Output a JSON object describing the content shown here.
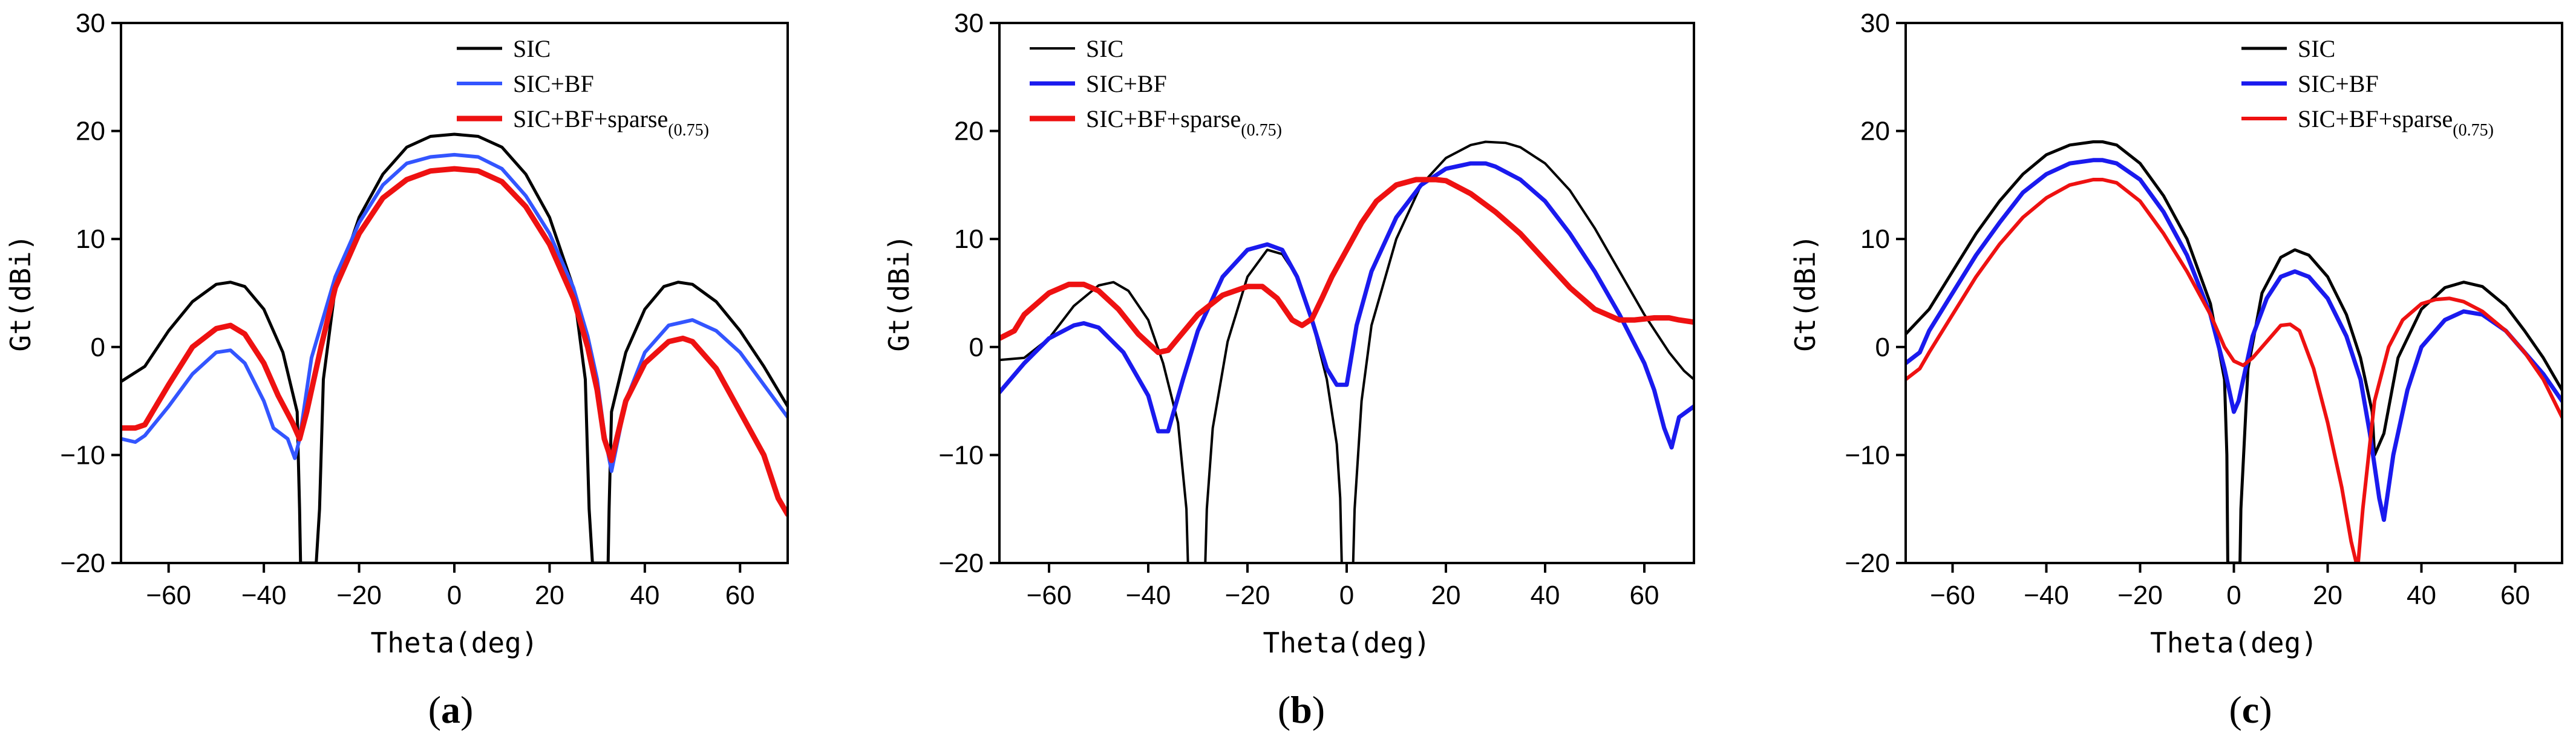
{
  "chart_data": [
    {
      "type": "line",
      "panel_label": "a",
      "xlabel": "Theta(deg)",
      "ylabel": "Gt(dBi)",
      "xlim": [
        -70,
        70
      ],
      "ylim": [
        -20,
        30
      ],
      "xticks": [
        -60,
        -40,
        -20,
        0,
        20,
        40,
        60
      ],
      "yticks": [
        -20,
        -10,
        0,
        10,
        20,
        30
      ],
      "legend_position": "top-right",
      "series": [
        {
          "name": "SIC",
          "color": "#000000",
          "width": 5,
          "x": [
            -70,
            -65,
            -60,
            -55,
            -50,
            -47,
            -44,
            -40,
            -36,
            -33,
            -32.5,
            -32.3,
            -29,
            -28.3,
            -27.5,
            -25,
            -20,
            -15,
            -10,
            -5,
            0,
            5,
            10,
            15,
            20,
            25,
            27.5,
            28.3,
            29,
            32.3,
            32.5,
            33,
            36,
            40,
            44,
            47,
            50,
            55,
            60,
            65,
            70
          ],
          "y": [
            -3.2,
            -1.8,
            1.5,
            4.2,
            5.8,
            6.0,
            5.6,
            3.5,
            -0.5,
            -6,
            -15,
            -20,
            -20,
            -15,
            -3,
            5.5,
            12,
            16,
            18.5,
            19.5,
            19.7,
            19.5,
            18.5,
            16,
            12,
            5.5,
            -3,
            -15,
            -20,
            -20,
            -15,
            -6,
            -0.5,
            3.5,
            5.6,
            6.0,
            5.8,
            4.2,
            1.5,
            -1.8,
            -5.5
          ]
        },
        {
          "name": "SIC+BF",
          "color": "#3355ff",
          "width": 6,
          "x": [
            -70,
            -67,
            -65,
            -60,
            -55,
            -50,
            -47,
            -44,
            -40,
            -38,
            -35,
            -33.5,
            -32.5,
            -30,
            -25,
            -20,
            -15,
            -10,
            -5,
            0,
            5,
            10,
            15,
            20,
            25,
            28,
            30,
            31.5,
            33,
            36,
            40,
            45,
            50,
            55,
            60,
            65,
            70
          ],
          "y": [
            -8.5,
            -8.8,
            -8.2,
            -5.5,
            -2.5,
            -0.5,
            -0.3,
            -1.5,
            -5,
            -7.5,
            -8.5,
            -10.3,
            -8.5,
            -1,
            6.5,
            11.5,
            15,
            17,
            17.6,
            17.8,
            17.6,
            16.5,
            14,
            10.5,
            5.5,
            1,
            -3,
            -8,
            -11.5,
            -5,
            -0.5,
            2,
            2.5,
            1.5,
            -0.5,
            -3.5,
            -6.5
          ]
        },
        {
          "name": "SIC+BF+sparse(0.75)",
          "color": "#ee1111",
          "width": 9,
          "x": [
            -70,
            -67,
            -65,
            -60,
            -55,
            -50,
            -47,
            -44,
            -40,
            -37,
            -34,
            -32.5,
            -31,
            -28,
            -25,
            -20,
            -15,
            -10,
            -5,
            0,
            5,
            10,
            15,
            20,
            25,
            28,
            30,
            31.5,
            33,
            36,
            40,
            45,
            48,
            50,
            55,
            60,
            65,
            68,
            70
          ],
          "y": [
            -7.5,
            -7.5,
            -7.2,
            -3.5,
            0,
            1.7,
            2.0,
            1.2,
            -1.5,
            -4.5,
            -7,
            -8.5,
            -6,
            0,
            5.5,
            10.5,
            13.8,
            15.5,
            16.3,
            16.5,
            16.3,
            15.3,
            13,
            9.5,
            4.5,
            0,
            -4,
            -8.5,
            -10.5,
            -5,
            -1.5,
            0.5,
            0.8,
            0.5,
            -2,
            -6,
            -10,
            -14,
            -15.5
          ]
        }
      ],
      "legend": {
        "entries": [
          "SIC",
          "SIC+BF",
          "SIC+BF+sparse"
        ],
        "subscript": "(0.75)"
      }
    },
    {
      "type": "line",
      "panel_label": "b",
      "xlabel": "Theta(deg)",
      "ylabel": "Gt(dBi)",
      "xlim": [
        -70,
        70
      ],
      "ylim": [
        -20,
        30
      ],
      "xticks": [
        -60,
        -40,
        -20,
        0,
        20,
        40,
        60
      ],
      "yticks": [
        -20,
        -10,
        0,
        10,
        20,
        30
      ],
      "legend_position": "top-left",
      "series": [
        {
          "name": "SIC",
          "color": "#000000",
          "width": 4,
          "x": [
            -70,
            -65,
            -60,
            -55,
            -50,
            -47,
            -44,
            -40,
            -37,
            -34,
            -32.3,
            -32,
            -28.5,
            -28.2,
            -27,
            -24,
            -20,
            -16,
            -13,
            -10,
            -7,
            -4,
            -2,
            -1.3,
            -1,
            1.3,
            1.6,
            3,
            5,
            10,
            15,
            20,
            25,
            28,
            32,
            35,
            40,
            45,
            50,
            55,
            60,
            65,
            68,
            70
          ],
          "y": [
            -1.2,
            -1,
            0.8,
            3.8,
            5.7,
            6.0,
            5.2,
            2.5,
            -1.5,
            -7,
            -15,
            -20,
            -20,
            -15,
            -7.5,
            0.5,
            6.5,
            9.0,
            8.6,
            6.5,
            2.5,
            -3,
            -9,
            -14,
            -20,
            -20,
            -15,
            -5,
            2,
            10,
            15,
            17.5,
            18.7,
            19.0,
            18.9,
            18.5,
            17,
            14.5,
            11,
            7,
            3,
            -0.5,
            -2.2,
            -3
          ]
        },
        {
          "name": "SIC+BF",
          "color": "#1a1aee",
          "width": 7,
          "x": [
            -70,
            -65,
            -60,
            -55,
            -53,
            -50,
            -45,
            -40,
            -38,
            -36,
            -33,
            -30,
            -25,
            -20,
            -16,
            -13,
            -10,
            -7,
            -4,
            -2,
            0,
            2,
            5,
            10,
            15,
            20,
            25,
            28,
            30,
            35,
            40,
            45,
            50,
            55,
            60,
            62,
            64,
            65.5,
            67,
            70
          ],
          "y": [
            -4.2,
            -1.5,
            0.8,
            2.0,
            2.2,
            1.8,
            -0.5,
            -4.5,
            -7.8,
            -7.8,
            -3,
            1.5,
            6.5,
            9.0,
            9.5,
            9.0,
            6.5,
            2.5,
            -2,
            -3.5,
            -3.5,
            2,
            7,
            12,
            15,
            16.5,
            17.0,
            17.0,
            16.7,
            15.5,
            13.5,
            10.5,
            7,
            3,
            -1.5,
            -4,
            -7.5,
            -9.3,
            -6.5,
            -5.5
          ]
        },
        {
          "name": "SIC+BF+sparse(0.75)",
          "color": "#ee1111",
          "width": 9,
          "x": [
            -70,
            -67,
            -65,
            -60,
            -56,
            -53,
            -50,
            -46,
            -42,
            -38,
            -36,
            -34,
            -30,
            -25,
            -20,
            -17,
            -14,
            -11,
            -9,
            -7,
            -5,
            -3,
            0,
            3,
            6,
            10,
            14,
            18,
            20,
            25,
            30,
            35,
            40,
            45,
            50,
            55,
            58,
            60,
            62,
            65,
            67,
            70
          ],
          "y": [
            0.8,
            1.5,
            3,
            5,
            5.8,
            5.8,
            5.2,
            3.5,
            1.2,
            -0.5,
            -0.3,
            0.8,
            3,
            4.8,
            5.6,
            5.6,
            4.5,
            2.5,
            2.0,
            2.6,
            4.5,
            6.5,
            9,
            11.5,
            13.5,
            15,
            15.5,
            15.5,
            15.4,
            14.2,
            12.5,
            10.5,
            8,
            5.5,
            3.5,
            2.5,
            2.5,
            2.6,
            2.7,
            2.7,
            2.5,
            2.3
          ]
        }
      ],
      "legend": {
        "entries": [
          "SIC",
          "SIC+BF",
          "SIC+BF+sparse"
        ],
        "subscript": "(0.75)"
      }
    },
    {
      "type": "line",
      "panel_label": "c",
      "xlabel": "Theta(deg)",
      "ylabel": "Gt(dBi)",
      "xlim": [
        -70,
        70
      ],
      "ylim": [
        -20,
        30
      ],
      "xticks": [
        -60,
        -40,
        -20,
        0,
        20,
        40,
        60
      ],
      "yticks": [
        -20,
        -10,
        0,
        10,
        20,
        30
      ],
      "legend_position": "top-right",
      "series": [
        {
          "name": "SIC",
          "color": "#000000",
          "width": 5,
          "x": [
            -70,
            -65,
            -60,
            -55,
            -50,
            -45,
            -40,
            -35,
            -30,
            -28,
            -25,
            -20,
            -15,
            -10,
            -5,
            -2,
            -1.5,
            -1.3,
            1.3,
            1.5,
            3,
            6,
            10,
            13,
            16,
            20,
            24,
            27,
            29.5,
            30,
            32,
            35,
            40,
            45,
            49,
            53,
            58,
            62,
            66,
            70
          ],
          "y": [
            1.2,
            3.5,
            7,
            10.5,
            13.5,
            16,
            17.8,
            18.7,
            19.0,
            19.0,
            18.7,
            17,
            14,
            10,
            4,
            -3,
            -10,
            -20,
            -20,
            -15,
            -2,
            5,
            8.3,
            9.0,
            8.5,
            6.5,
            3,
            -1,
            -6,
            -10,
            -8,
            -1,
            3.5,
            5.5,
            6.0,
            5.6,
            3.8,
            1.5,
            -1,
            -4
          ]
        },
        {
          "name": "SIC+BF",
          "color": "#1a1aee",
          "width": 7,
          "x": [
            -70,
            -67,
            -65,
            -60,
            -55,
            -50,
            -45,
            -40,
            -35,
            -30,
            -28,
            -25,
            -20,
            -15,
            -10,
            -5,
            -2,
            0,
            1,
            2,
            4,
            7,
            10,
            13,
            16,
            20,
            24,
            27,
            29,
            31,
            32,
            34,
            37,
            40,
            45,
            49,
            53,
            58,
            62,
            66,
            70
          ],
          "y": [
            -1.5,
            -0.5,
            1.5,
            5,
            8.5,
            11.5,
            14.3,
            16,
            17,
            17.3,
            17.3,
            17,
            15.5,
            12.5,
            8.5,
            3,
            -2,
            -6,
            -5,
            -3,
            1,
            4.5,
            6.5,
            7.0,
            6.5,
            4.5,
            1,
            -3,
            -8,
            -14,
            -16,
            -10,
            -4,
            0,
            2.5,
            3.3,
            3.0,
            1.5,
            -0.5,
            -2.5,
            -5
          ]
        },
        {
          "name": "SIC+BF+sparse(0.75)",
          "color": "#ee1111",
          "width": 6,
          "x": [
            -70,
            -67,
            -65,
            -60,
            -55,
            -50,
            -45,
            -40,
            -35,
            -30,
            -28,
            -25,
            -20,
            -15,
            -10,
            -5,
            -2,
            0,
            2,
            4,
            7,
            10,
            12,
            14,
            17,
            20,
            23,
            25,
            26,
            26.5,
            27.5,
            30,
            33,
            36,
            40,
            43,
            46,
            49,
            53,
            58,
            62,
            66,
            70
          ],
          "y": [
            -3,
            -2,
            -0.5,
            3,
            6.5,
            9.5,
            12,
            13.8,
            15.0,
            15.5,
            15.5,
            15.2,
            13.5,
            10.5,
            7,
            3,
            0,
            -1.3,
            -1.7,
            -1,
            0.5,
            2,
            2.1,
            1.5,
            -2,
            -7,
            -13,
            -18,
            -19.8,
            -20,
            -15,
            -5,
            0,
            2.5,
            4,
            4.4,
            4.5,
            4.2,
            3.3,
            1.5,
            -0.5,
            -3,
            -6.5
          ]
        }
      ],
      "legend": {
        "entries": [
          "SIC",
          "SIC+BF",
          "SIC+BF+sparse"
        ],
        "subscript": "(0.75)"
      }
    }
  ]
}
